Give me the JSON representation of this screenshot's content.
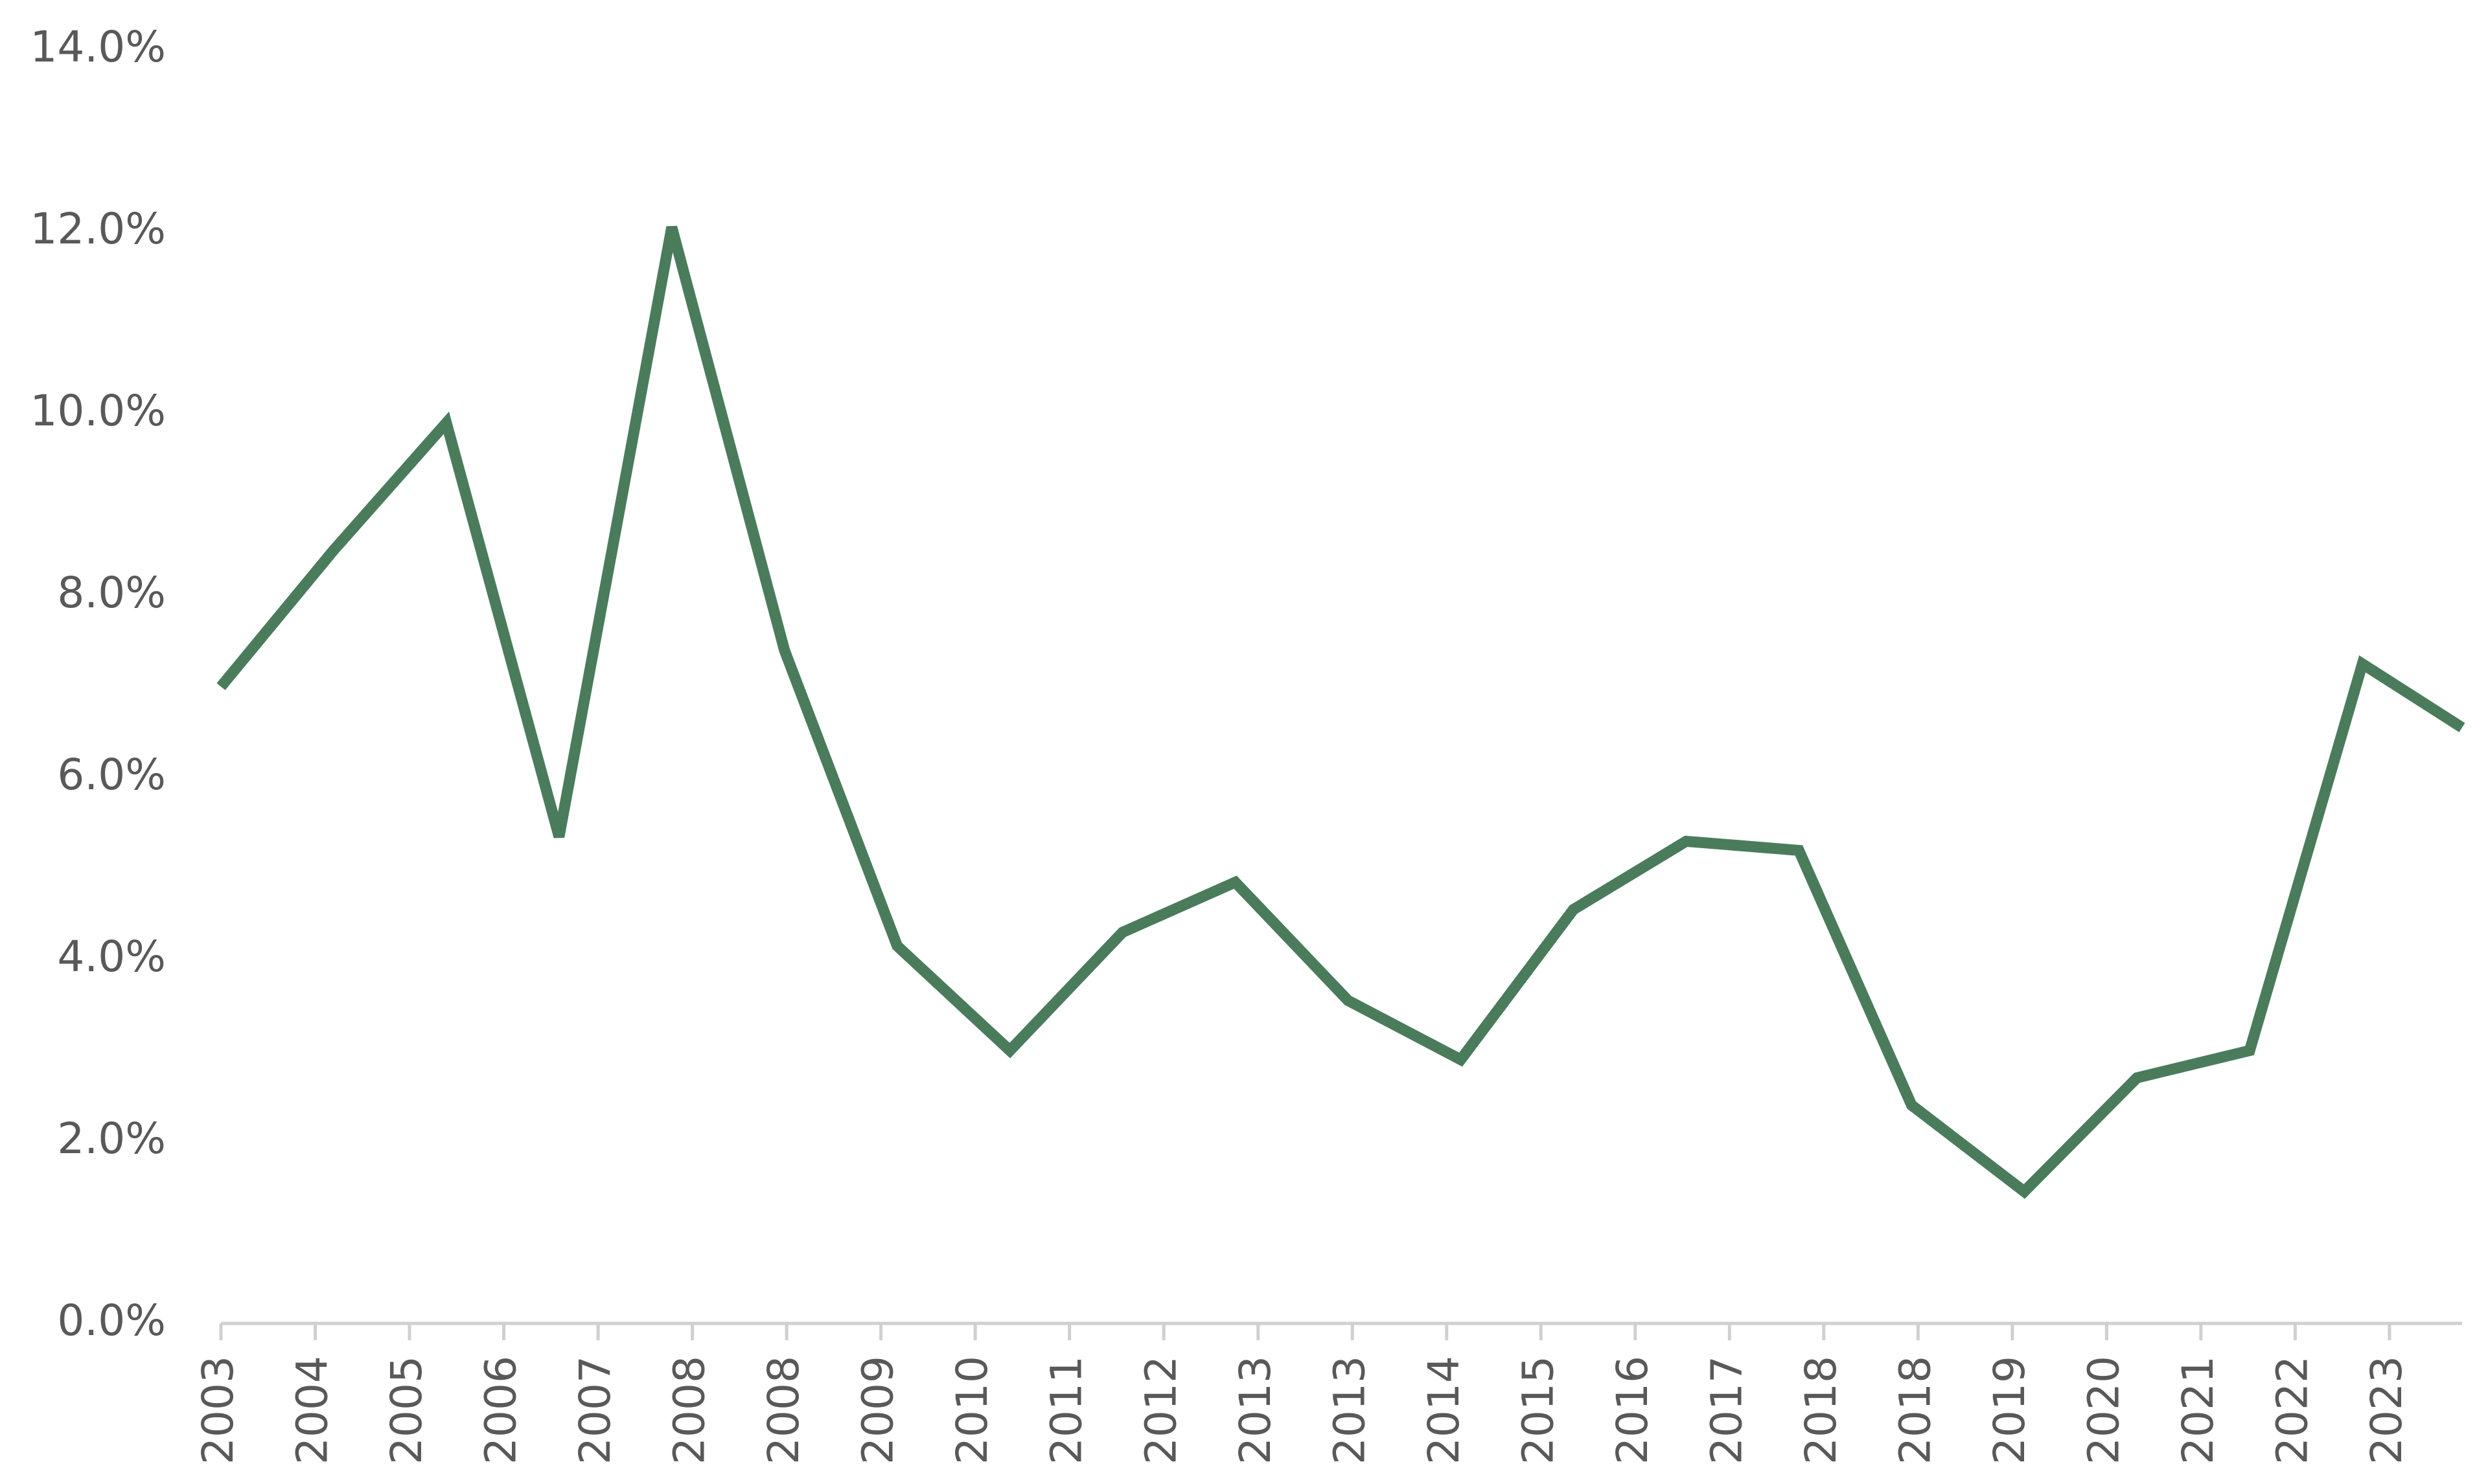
{
  "chart_data": {
    "type": "line",
    "x": [
      2003,
      2004.04,
      2005.08,
      2006.12,
      2007.16,
      2008.2,
      2009.24,
      2010.28,
      2011.32,
      2012.36,
      2013.4,
      2014.44,
      2015.48,
      2016.52,
      2017.56,
      2018.6,
      2019.64,
      2020.68,
      2021.72,
      2022.76,
      2023.68
    ],
    "series": [
      {
        "color": "#4a7c5c",
        "values": [
          7.0,
          8.5,
          9.9,
          5.35,
          12.05,
          7.4,
          4.15,
          3.0,
          4.3,
          4.85,
          3.55,
          2.9,
          4.55,
          5.3,
          5.2,
          2.4,
          1.45,
          2.7,
          3.0,
          7.25,
          6.55
        ]
      }
    ],
    "xlim": [
      2003,
      2023.68
    ],
    "xticks": [
      {
        "value": 2003,
        "label": "2003"
      },
      {
        "value": 2003.87,
        "label": "2004"
      },
      {
        "value": 2004.74,
        "label": "2005"
      },
      {
        "value": 2005.61,
        "label": "2006"
      },
      {
        "value": 2006.48,
        "label": "2007"
      },
      {
        "value": 2007.35,
        "label": "2008"
      },
      {
        "value": 2008.22,
        "label": "2008"
      },
      {
        "value": 2009.09,
        "label": "2009"
      },
      {
        "value": 2009.96,
        "label": "2010"
      },
      {
        "value": 2010.83,
        "label": "2011"
      },
      {
        "value": 2011.7,
        "label": "2012"
      },
      {
        "value": 2012.57,
        "label": "2013"
      },
      {
        "value": 2013.44,
        "label": "2013"
      },
      {
        "value": 2014.31,
        "label": "2014"
      },
      {
        "value": 2015.18,
        "label": "2015"
      },
      {
        "value": 2016.05,
        "label": "2016"
      },
      {
        "value": 2016.92,
        "label": "2017"
      },
      {
        "value": 2017.79,
        "label": "2018"
      },
      {
        "value": 2018.66,
        "label": "2018"
      },
      {
        "value": 2019.53,
        "label": "2019"
      },
      {
        "value": 2020.4,
        "label": "2020"
      },
      {
        "value": 2021.27,
        "label": "2021"
      },
      {
        "value": 2022.14,
        "label": "2022"
      },
      {
        "value": 2023.01,
        "label": "2023"
      }
    ],
    "ylim": [
      0,
      14
    ],
    "yticks": [
      {
        "value": 0,
        "label": "0.0%"
      },
      {
        "value": 2,
        "label": "2.0%"
      },
      {
        "value": 4,
        "label": "4.0%"
      },
      {
        "value": 6,
        "label": "6.0%"
      },
      {
        "value": 8,
        "label": "8.0%"
      },
      {
        "value": 10,
        "label": "10.0%"
      },
      {
        "value": 12,
        "label": "12.0%"
      },
      {
        "value": 14,
        "label": "14.0%"
      }
    ],
    "grid": false
  }
}
